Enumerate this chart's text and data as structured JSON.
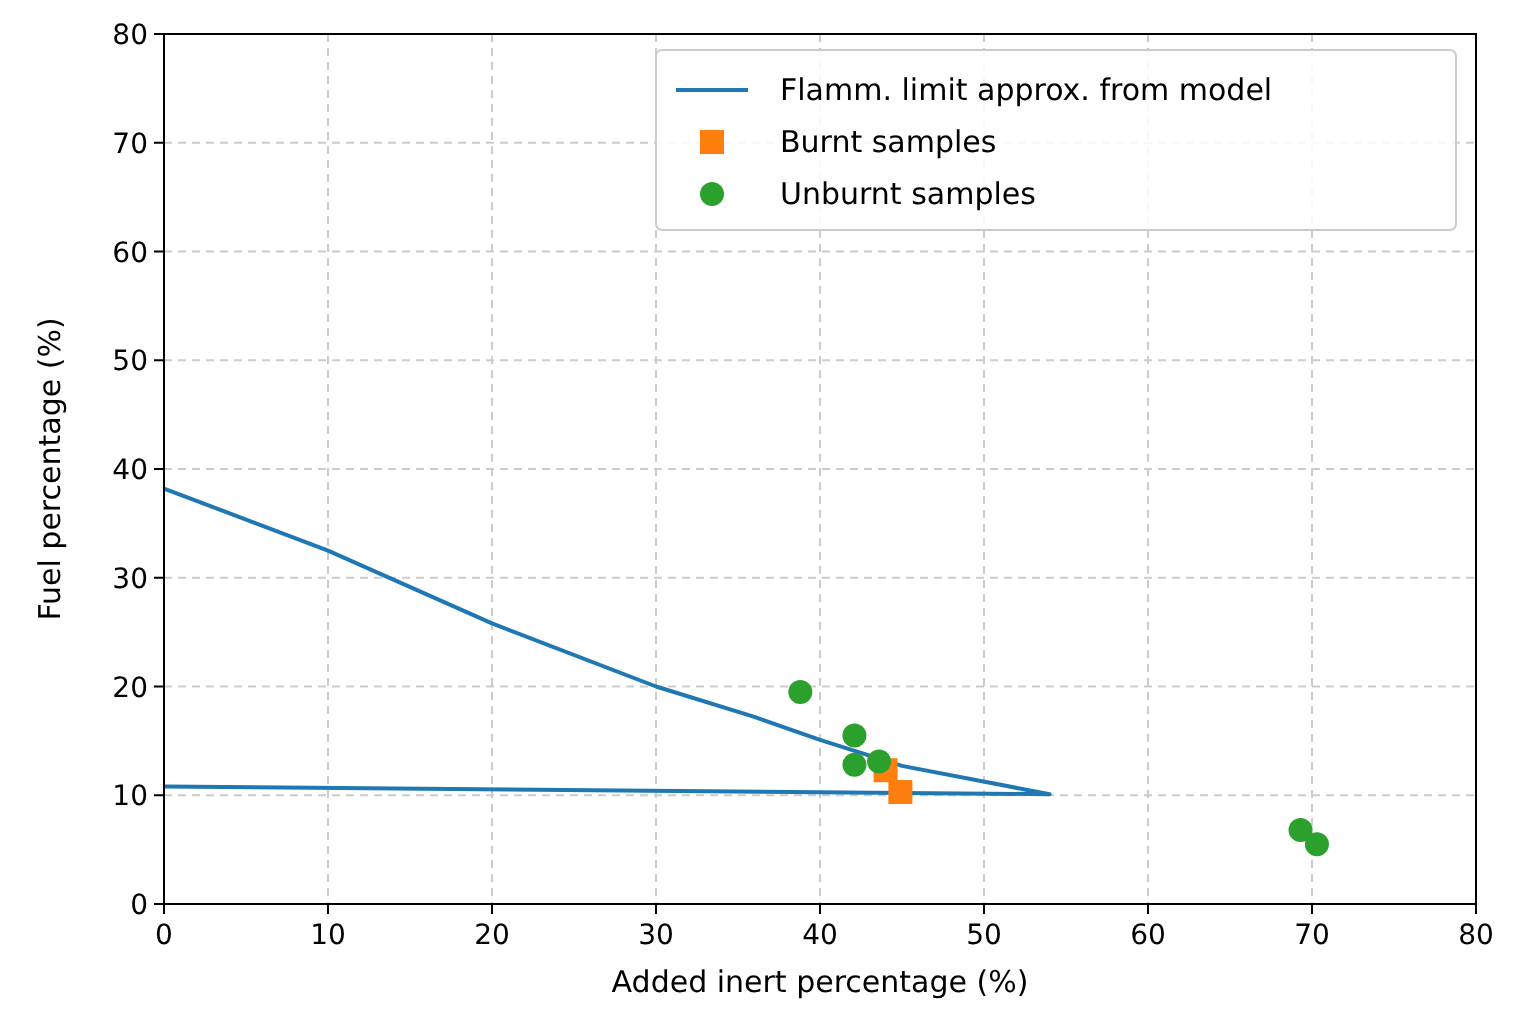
{
  "chart_data": {
    "type": "scatter",
    "xlabel": "Added inert percentage (%)",
    "ylabel": "Fuel percentage (%)",
    "xlim": [
      0,
      80
    ],
    "ylim": [
      0,
      80
    ],
    "xticks": [
      0,
      10,
      20,
      30,
      40,
      50,
      60,
      70,
      80
    ],
    "yticks": [
      0,
      10,
      20,
      30,
      40,
      50,
      60,
      70,
      80
    ],
    "grid": true,
    "legend": "top right",
    "series": [
      {
        "name": "Flamm. limit approx. from model",
        "type": "line",
        "color": "#1f77b4",
        "marker": "none",
        "line_style": "solid",
        "x": [
          0,
          10,
          20,
          30,
          36,
          40,
          45,
          54,
          0
        ],
        "values": [
          38.2,
          32.5,
          25.8,
          20,
          17.2,
          15.1,
          12.7,
          10.1,
          10.8
        ]
      },
      {
        "name": "Burnt samples",
        "color": "#ff7f0e",
        "marker": "square",
        "x": [
          44.0,
          44.9
        ],
        "values": [
          12.3,
          10.3
        ]
      },
      {
        "name": "Unburnt samples",
        "color": "#2ca02c",
        "marker": "circle",
        "x": [
          38.8,
          42.1,
          42.1,
          43.6,
          69.3,
          70.3
        ],
        "values": [
          19.5,
          15.5,
          12.8,
          13.1,
          6.8,
          5.5
        ]
      }
    ]
  }
}
